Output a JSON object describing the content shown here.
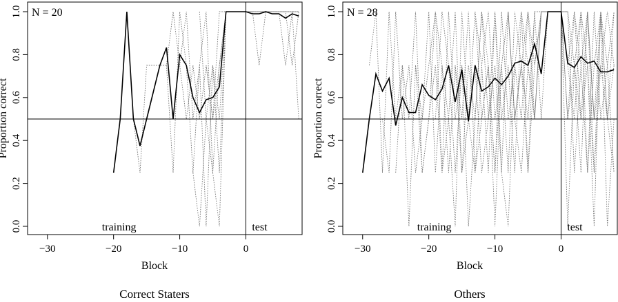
{
  "chart_data": [
    {
      "type": "line",
      "caption": "Correct Staters",
      "n_label": "N =  20",
      "xlabel": "Block",
      "ylabel": "Proportion correct",
      "xlim": [
        -33,
        8.5
      ],
      "ylim": [
        0,
        1
      ],
      "xticks": [
        -30,
        -20,
        -10,
        0
      ],
      "yticks": [
        0.0,
        0.2,
        0.4,
        0.6,
        0.8,
        1.0
      ],
      "xtick_labels": [
        "−30",
        "−20",
        "−10",
        "0"
      ],
      "ytick_labels": [
        "0.0",
        "0.2",
        "0.4",
        "0.6",
        "0.8",
        "1.0"
      ],
      "reference_hline": 0.5,
      "reference_vline": 0,
      "annotations": [
        "training",
        "test"
      ],
      "mean_series": {
        "x": [
          -20,
          -19,
          -18,
          -17,
          -16,
          -15,
          -14,
          -13,
          -12,
          -11,
          -10,
          -9,
          -8,
          -7,
          -6,
          -5,
          -4,
          -3,
          -2,
          -1,
          0,
          1,
          2,
          3,
          4,
          5,
          6,
          7,
          8
        ],
        "y": [
          0.25,
          0.5,
          1.0,
          0.5,
          0.375,
          0.5,
          0.625,
          0.75,
          0.833,
          0.5,
          0.8,
          0.75,
          0.6,
          0.53,
          0.59,
          0.6,
          0.65,
          1.0,
          1.0,
          1.0,
          1.0,
          0.99,
          0.99,
          1.0,
          0.99,
          0.99,
          0.97,
          0.99,
          0.98
        ]
      },
      "individual_series": [
        {
          "x": [
            -18,
            -17,
            -16,
            -15,
            -14,
            -13,
            -12,
            -11,
            -10,
            -9,
            -8,
            -7,
            -6,
            -5,
            -4,
            -3,
            -2,
            -1,
            0,
            1,
            2,
            3,
            4,
            5,
            6,
            7,
            8
          ],
          "y": [
            1.0,
            0.5,
            0.25,
            0.75,
            0.75,
            0.75,
            0.75,
            1.0,
            0.75,
            0.5,
            0.75,
            0.5,
            0.75,
            0.5,
            0.75,
            1.0,
            1.0,
            1.0,
            1.0,
            1.0,
            1.0,
            1.0,
            1.0,
            1.0,
            1.0,
            1.0,
            1.0
          ]
        },
        {
          "x": [
            -12,
            -11,
            -10,
            -9,
            -8,
            -7,
            -6,
            -5,
            -4,
            -3,
            -2,
            -1,
            0,
            1,
            2,
            3,
            4,
            5,
            6,
            7,
            8
          ],
          "y": [
            0.75,
            0.25,
            1.0,
            0.75,
            0.25,
            0.0,
            0.5,
            0.25,
            0.75,
            1.0,
            1.0,
            1.0,
            1.0,
            1.0,
            0.75,
            1.0,
            1.0,
            1.0,
            0.75,
            1.0,
            0.5
          ]
        },
        {
          "x": [
            -10,
            -9,
            -8,
            -7,
            -6,
            -5,
            -4,
            -3,
            -2,
            -1,
            0,
            1,
            2,
            3,
            4,
            5,
            6,
            7,
            8
          ],
          "y": [
            0.75,
            1.0,
            0.5,
            0.75,
            0.0,
            0.75,
            0.5,
            1.0,
            1.0,
            1.0,
            1.0,
            1.0,
            1.0,
            1.0,
            1.0,
            1.0,
            1.0,
            0.75,
            1.0
          ]
        },
        {
          "x": [
            -8,
            -7,
            -6,
            -5,
            -4,
            -3,
            -2,
            -1,
            0,
            1,
            2,
            3,
            4,
            5,
            6,
            7,
            8
          ],
          "y": [
            0.25,
            0.75,
            1.0,
            0.25,
            0.0,
            1.0,
            1.0,
            1.0,
            1.0,
            1.0,
            1.0,
            1.0,
            1.0,
            1.0,
            1.0,
            1.0,
            1.0
          ]
        },
        {
          "x": [
            -7,
            -6,
            -5,
            -4,
            -3,
            -2,
            -1,
            0,
            1,
            2,
            3,
            4,
            5,
            6,
            7,
            8
          ],
          "y": [
            1.0,
            0.5,
            0.75,
            0.25,
            1.0,
            1.0,
            1.0,
            1.0,
            1.0,
            1.0,
            1.0,
            1.0,
            1.0,
            1.0,
            1.0,
            1.0
          ]
        },
        {
          "x": [
            -6,
            -5,
            -4,
            -3,
            -2,
            -1,
            0,
            1,
            2,
            3,
            4,
            5,
            6,
            7,
            8
          ],
          "y": [
            0.75,
            0.5,
            1.0,
            1.0,
            1.0,
            1.0,
            1.0,
            1.0,
            1.0,
            1.0,
            1.0,
            1.0,
            1.0,
            1.0,
            1.0
          ]
        }
      ]
    },
    {
      "type": "line",
      "caption": "Others",
      "n_label": "N = 28",
      "xlabel": "Block",
      "ylabel": "Proportion correct",
      "xlim": [
        -33,
        8.5
      ],
      "ylim": [
        0,
        1
      ],
      "xticks": [
        -30,
        -20,
        -10,
        0
      ],
      "yticks": [
        0.0,
        0.2,
        0.4,
        0.6,
        0.8,
        1.0
      ],
      "xtick_labels": [
        "−30",
        "−20",
        "−10",
        "0"
      ],
      "ytick_labels": [
        "0.0",
        "0.2",
        "0.4",
        "0.6",
        "0.8",
        "1.0"
      ],
      "reference_hline": 0.5,
      "reference_vline": 0,
      "annotations": [
        "training",
        "test"
      ],
      "mean_series": {
        "x": [
          -30,
          -29,
          -28,
          -27,
          -26,
          -25,
          -24,
          -23,
          -22,
          -21,
          -20,
          -19,
          -18,
          -17,
          -16,
          -15,
          -14,
          -13,
          -12,
          -11,
          -10,
          -9,
          -8,
          -7,
          -6,
          -5,
          -4,
          -3,
          -2,
          -1,
          0,
          1,
          2,
          3,
          4,
          5,
          6,
          7,
          8
        ],
        "y": [
          0.25,
          0.5,
          0.71,
          0.63,
          0.69,
          0.47,
          0.6,
          0.53,
          0.53,
          0.66,
          0.61,
          0.59,
          0.64,
          0.75,
          0.58,
          0.73,
          0.49,
          0.75,
          0.63,
          0.65,
          0.69,
          0.66,
          0.7,
          0.76,
          0.77,
          0.75,
          0.85,
          0.71,
          1.0,
          1.0,
          1.0,
          0.76,
          0.74,
          0.79,
          0.76,
          0.77,
          0.72,
          0.72,
          0.73
        ]
      },
      "individual_series": [
        {
          "x": [
            -29,
            -28,
            -27,
            -26,
            -25,
            -24,
            -23,
            -22,
            -21,
            -20,
            -19,
            -18,
            -17,
            -16,
            -15,
            -14,
            -13,
            -12,
            -11,
            -10,
            -9,
            -8,
            -7,
            -6,
            -5,
            -4,
            -3,
            -2,
            -1,
            0,
            1,
            2,
            3,
            4,
            5,
            6,
            7,
            8
          ],
          "y": [
            0.75,
            1.0,
            0.25,
            1.0,
            0.5,
            0.75,
            0.0,
            0.75,
            0.5,
            1.0,
            0.25,
            0.75,
            0.5,
            1.0,
            0.25,
            0.75,
            0.5,
            1.0,
            0.5,
            0.75,
            0.25,
            1.0,
            0.5,
            0.75,
            1.0,
            0.5,
            1.0,
            1.0,
            1.0,
            1.0,
            0.0,
            0.75,
            0.5,
            1.0,
            0.25,
            0.75,
            0.5,
            1.0
          ]
        },
        {
          "x": [
            -27,
            -26,
            -25,
            -24,
            -23,
            -22,
            -21,
            -20,
            -19,
            -18,
            -17,
            -16,
            -15,
            -14,
            -13,
            -12,
            -11,
            -10,
            -9,
            -8,
            -7,
            -6,
            -5,
            -4,
            -3,
            -2,
            -1,
            0,
            1,
            2,
            3,
            4,
            5,
            6,
            7,
            8
          ],
          "y": [
            0.5,
            0.25,
            1.0,
            0.5,
            0.75,
            0.25,
            0.5,
            0.75,
            1.0,
            0.25,
            0.5,
            0.0,
            1.0,
            0.5,
            0.25,
            0.75,
            1.0,
            0.5,
            0.75,
            0.25,
            1.0,
            0.75,
            0.5,
            1.0,
            0.5,
            1.0,
            1.0,
            1.0,
            0.5,
            1.0,
            0.75,
            0.25,
            1.0,
            0.5,
            0.75,
            0.25
          ]
        },
        {
          "x": [
            -25,
            -24,
            -23,
            -22,
            -21,
            -20,
            -19,
            -18,
            -17,
            -16,
            -15,
            -14,
            -13,
            -12,
            -11,
            -10,
            -9,
            -8,
            -7,
            -6,
            -5,
            -4,
            -3,
            -2,
            -1,
            0,
            1,
            2,
            3,
            4,
            5,
            6,
            7,
            8
          ],
          "y": [
            0.25,
            0.75,
            0.5,
            1.0,
            0.25,
            0.5,
            0.75,
            0.25,
            1.0,
            0.5,
            0.75,
            0.0,
            0.5,
            1.0,
            0.75,
            0.25,
            1.0,
            0.5,
            0.75,
            1.0,
            0.25,
            0.75,
            1.0,
            1.0,
            1.0,
            1.0,
            0.75,
            0.5,
            1.0,
            0.75,
            0.0,
            1.0,
            0.5,
            0.75
          ]
        },
        {
          "x": [
            -22,
            -21,
            -20,
            -19,
            -18,
            -17,
            -16,
            -15,
            -14,
            -13,
            -12,
            -11,
            -10,
            -9,
            -8,
            -7,
            -6,
            -5,
            -4,
            -3,
            -2,
            -1,
            0,
            1,
            2,
            3,
            4,
            5,
            6,
            7,
            8
          ],
          "y": [
            0.75,
            0.25,
            0.5,
            1.0,
            0.75,
            0.25,
            0.75,
            0.5,
            1.0,
            0.25,
            0.5,
            0.75,
            0.0,
            0.75,
            1.0,
            0.5,
            0.75,
            0.25,
            1.0,
            1.0,
            1.0,
            1.0,
            1.0,
            1.0,
            0.25,
            0.75,
            1.0,
            0.5,
            0.75,
            1.0,
            0.75
          ]
        },
        {
          "x": [
            -19,
            -18,
            -17,
            -16,
            -15,
            -14,
            -13,
            -12,
            -11,
            -10,
            -9,
            -8,
            -7,
            -6,
            -5,
            -4,
            -3,
            -2,
            -1,
            0,
            1,
            2,
            3,
            4,
            5,
            6,
            7,
            8
          ],
          "y": [
            0.5,
            1.0,
            0.75,
            0.25,
            0.75,
            0.5,
            1.0,
            0.75,
            0.25,
            1.0,
            0.5,
            0.75,
            0.25,
            1.0,
            0.75,
            0.5,
            1.0,
            1.0,
            1.0,
            1.0,
            0.5,
            0.75,
            1.0,
            0.25,
            0.75,
            1.0,
            0.5,
            0.25
          ]
        },
        {
          "x": [
            -16,
            -15,
            -14,
            -13,
            -12,
            -11,
            -10,
            -9,
            -8,
            -7,
            -6,
            -5,
            -4,
            -3,
            -2,
            -1,
            0,
            1,
            2,
            3,
            4,
            5,
            6,
            7,
            8
          ],
          "y": [
            0.75,
            0.25,
            0.5,
            0.75,
            0.25,
            0.5,
            1.0,
            0.25,
            0.0,
            0.75,
            0.5,
            1.0,
            0.75,
            1.0,
            1.0,
            1.0,
            1.0,
            1.0,
            0.75,
            0.25,
            1.0,
            0.5,
            1.0,
            0.75,
            1.0
          ]
        },
        {
          "x": [
            -13,
            -12,
            -11,
            -10,
            -9,
            -8,
            -7,
            -6,
            -5,
            -4,
            -3,
            -2,
            -1,
            0,
            1,
            2,
            3,
            4,
            5,
            6,
            7,
            8
          ],
          "y": [
            1.0,
            0.5,
            0.75,
            0.25,
            0.75,
            1.0,
            0.5,
            0.25,
            0.75,
            0.5,
            1.0,
            1.0,
            1.0,
            1.0,
            0.75,
            1.0,
            0.5,
            0.75,
            0.25,
            1.0,
            0.0,
            0.5
          ]
        }
      ]
    }
  ]
}
